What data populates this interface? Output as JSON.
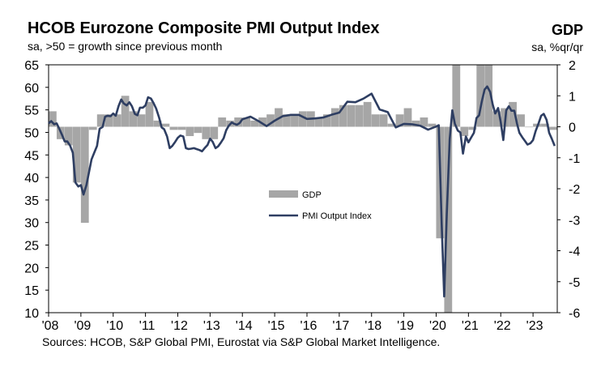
{
  "header": {
    "title": "HCOB Eurozone Composite PMI Output Index",
    "subtitle": "sa, >50 = growth since previous month",
    "right_title": "GDP",
    "right_subtitle": "sa, %qr/qr"
  },
  "footer": {
    "source": "Sources: HCOB, S&P Global PMI, Eurostat via S&P Global Market Intelligence."
  },
  "colors": {
    "gdp_bars": "#a6a6a6",
    "pmi_line": "#2e3e62",
    "axis": "#000000"
  },
  "chart_data": {
    "type": "bar+line",
    "x_tick_labels": [
      "'08",
      "'09",
      "'10",
      "'11",
      "'12",
      "'13",
      "'14",
      "'15",
      "'16",
      "'17",
      "'18",
      "'19",
      "'20",
      "'21",
      "'22",
      "'23"
    ],
    "x_range": [
      2008.0,
      2023.75
    ],
    "y_left": {
      "label": "PMI Output Index",
      "range": [
        10,
        65
      ],
      "ticks": [
        10,
        15,
        20,
        25,
        30,
        35,
        40,
        45,
        50,
        55,
        60,
        65
      ]
    },
    "y_right": {
      "label": "GDP",
      "range": [
        -6,
        2
      ],
      "ticks": [
        -6,
        -5,
        -4,
        -3,
        -2,
        -1,
        0,
        1,
        2
      ]
    },
    "legend": {
      "position": "center",
      "entries": [
        "GDP",
        "PMI Output Index"
      ]
    },
    "gdp_series": {
      "name": "GDP",
      "axis": "right",
      "quarters": [
        2008.0,
        2008.25,
        2008.5,
        2008.75,
        2009.0,
        2009.25,
        2009.5,
        2009.75,
        2010.0,
        2010.25,
        2010.5,
        2010.75,
        2011.0,
        2011.25,
        2011.5,
        2011.75,
        2012.0,
        2012.25,
        2012.5,
        2012.75,
        2013.0,
        2013.25,
        2013.5,
        2013.75,
        2014.0,
        2014.25,
        2014.5,
        2014.75,
        2015.0,
        2015.25,
        2015.5,
        2015.75,
        2016.0,
        2016.25,
        2016.5,
        2016.75,
        2017.0,
        2017.25,
        2017.5,
        2017.75,
        2018.0,
        2018.25,
        2018.5,
        2018.75,
        2019.0,
        2019.25,
        2019.5,
        2019.75,
        2020.0,
        2020.25,
        2020.5,
        2020.75,
        2021.0,
        2021.25,
        2021.5,
        2021.75,
        2022.0,
        2022.25,
        2022.5,
        2022.75,
        2023.0,
        2023.25,
        2023.5
      ],
      "values": [
        0.5,
        -0.4,
        -0.6,
        -1.8,
        -3.1,
        -0.1,
        0.4,
        0.4,
        0.4,
        1.0,
        0.5,
        0.4,
        0.8,
        0.2,
        0.1,
        -0.1,
        -0.1,
        -0.3,
        -0.2,
        -0.4,
        -0.4,
        0.3,
        0.2,
        0.3,
        0.3,
        0.2,
        0.3,
        0.4,
        0.6,
        0.4,
        0.4,
        0.5,
        0.5,
        0.3,
        0.4,
        0.6,
        0.7,
        0.7,
        0.7,
        0.8,
        0.4,
        0.4,
        0.1,
        0.4,
        0.6,
        0.2,
        0.3,
        0.1,
        -3.6,
        -11.5,
        12.0,
        -0.3,
        -0.1,
        2.1,
        2.2,
        0.5,
        0.6,
        0.8,
        0.4,
        0.0,
        0.1,
        0.1,
        -0.1
      ]
    },
    "pmi_series": {
      "name": "PMI Output Index",
      "axis": "left",
      "x": [
        2008.0,
        2008.08,
        2008.17,
        2008.25,
        2008.33,
        2008.42,
        2008.5,
        2008.58,
        2008.67,
        2008.75,
        2008.83,
        2008.92,
        2009.0,
        2009.08,
        2009.17,
        2009.25,
        2009.33,
        2009.42,
        2009.5,
        2009.58,
        2009.67,
        2009.75,
        2009.83,
        2009.92,
        2010.0,
        2010.08,
        2010.17,
        2010.25,
        2010.33,
        2010.42,
        2010.5,
        2010.58,
        2010.67,
        2010.75,
        2010.83,
        2010.92,
        2011.0,
        2011.08,
        2011.17,
        2011.25,
        2011.33,
        2011.42,
        2011.5,
        2011.58,
        2011.67,
        2011.75,
        2011.83,
        2011.92,
        2012.0,
        2012.08,
        2012.17,
        2012.25,
        2012.33,
        2012.42,
        2012.5,
        2012.58,
        2012.67,
        2012.75,
        2012.83,
        2012.92,
        2013.0,
        2013.08,
        2013.17,
        2013.25,
        2013.33,
        2013.42,
        2013.5,
        2013.58,
        2013.67,
        2013.75,
        2013.83,
        2013.92,
        2014.0,
        2014.25,
        2014.5,
        2014.75,
        2015.0,
        2015.25,
        2015.5,
        2015.75,
        2016.0,
        2016.25,
        2016.5,
        2016.75,
        2017.0,
        2017.25,
        2017.5,
        2017.75,
        2018.0,
        2018.25,
        2018.5,
        2018.75,
        2019.0,
        2019.25,
        2019.5,
        2019.75,
        2020.0,
        2020.08,
        2020.17,
        2020.25,
        2020.33,
        2020.42,
        2020.5,
        2020.58,
        2020.67,
        2020.75,
        2020.83,
        2020.92,
        2021.0,
        2021.08,
        2021.17,
        2021.25,
        2021.33,
        2021.42,
        2021.5,
        2021.58,
        2021.67,
        2021.75,
        2021.83,
        2021.92,
        2022.0,
        2022.08,
        2022.17,
        2022.25,
        2022.33,
        2022.42,
        2022.5,
        2022.58,
        2022.67,
        2022.75,
        2022.83,
        2022.92,
        2023.0,
        2023.08,
        2023.17,
        2023.25,
        2023.33,
        2023.42,
        2023.5,
        2023.58,
        2023.67
      ],
      "values": [
        52.0,
        52.5,
        51.8,
        52.0,
        50.8,
        49.4,
        48.0,
        48.0,
        47.0,
        45.5,
        38.9,
        38.0,
        38.3,
        36.2,
        38.3,
        41.1,
        44.0,
        45.6,
        47.0,
        50.8,
        51.2,
        53.5,
        53.7,
        53.6,
        54.2,
        53.7,
        55.9,
        57.3,
        56.4,
        56.0,
        56.7,
        55.8,
        54.1,
        53.8,
        55.5,
        55.5,
        56.0,
        57.8,
        57.5,
        56.5,
        55.3,
        53.3,
        51.1,
        50.7,
        49.1,
        46.5,
        47.0,
        47.9,
        48.8,
        49.3,
        49.1,
        46.5,
        46.3,
        46.4,
        46.5,
        46.3,
        46.1,
        45.8,
        46.5,
        47.2,
        48.6,
        47.9,
        46.5,
        46.9,
        47.7,
        48.7,
        50.5,
        51.5,
        52.2,
        51.9,
        51.7,
        52.1,
        52.9,
        53.5,
        52.5,
        51.4,
        52.6,
        53.6,
        53.9,
        53.9,
        53.0,
        53.1,
        53.3,
        53.9,
        54.4,
        56.8,
        56.7,
        57.5,
        58.6,
        55.1,
        54.5,
        51.1,
        51.9,
        51.8,
        51.5,
        50.6,
        51.3,
        51.6,
        29.7,
        13.6,
        31.9,
        48.5,
        54.9,
        51.9,
        50.4,
        50.0,
        45.3,
        49.1,
        47.8,
        48.8,
        49.9,
        53.2,
        53.8,
        57.1,
        59.5,
        60.2,
        59.0,
        56.2,
        54.2,
        55.4,
        52.3,
        48.3,
        54.9,
        55.8,
        54.8,
        54.8,
        52.0,
        49.9,
        48.9,
        48.1,
        47.3,
        47.6,
        48.3,
        50.3,
        52.0,
        53.7,
        54.1,
        52.8,
        49.9,
        48.6,
        47.0
      ]
    }
  }
}
